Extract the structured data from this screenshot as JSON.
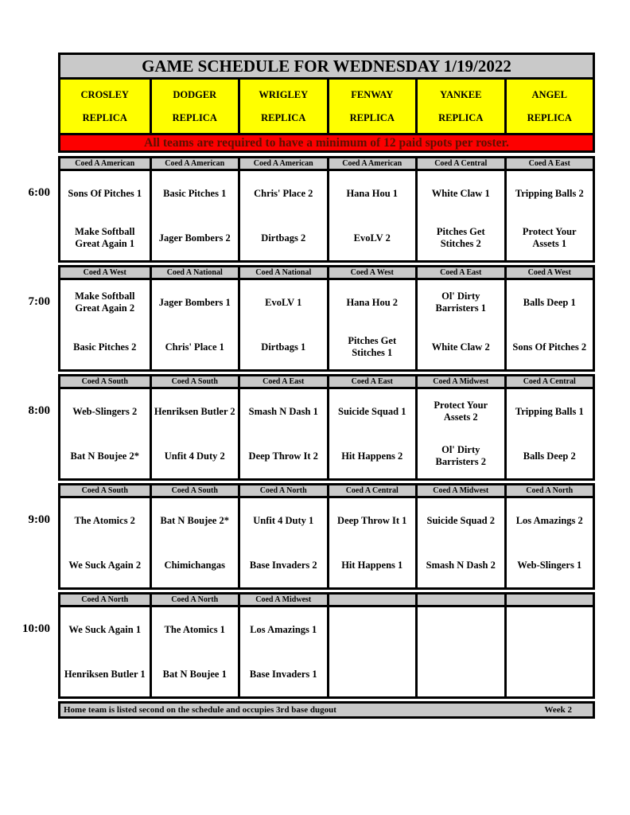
{
  "title": "GAME SCHEDULE FOR WEDNESDAY 1/19/2022",
  "notice": "All teams are required to have a minimum of 12 paid spots per roster.",
  "colors": {
    "silver": "#c9c9c9",
    "yellow": "#ffff00",
    "red": "#fd0000",
    "notice_text": "#5c0f00"
  },
  "stadiums": [
    {
      "name": "CROSLEY",
      "type": "REPLICA"
    },
    {
      "name": "DODGER",
      "type": "REPLICA"
    },
    {
      "name": "WRIGLEY",
      "type": "REPLICA"
    },
    {
      "name": "FENWAY",
      "type": "REPLICA"
    },
    {
      "name": "YANKEE",
      "type": "REPLICA"
    },
    {
      "name": "ANGEL",
      "type": "REPLICA"
    }
  ],
  "schedule": [
    {
      "time": "6:00",
      "games": [
        {
          "division": "Coed A American",
          "team1": "Sons Of Pitches 1",
          "team2": "Make Softball Great Again 1"
        },
        {
          "division": "Coed A American",
          "team1": "Basic Pitches 1",
          "team2": "Jager Bombers 2"
        },
        {
          "division": "Coed A American",
          "team1": "Chris' Place 2",
          "team2": "Dirtbags 2"
        },
        {
          "division": "Coed A American",
          "team1": "Hana Hou 1",
          "team2": "EvoLV 2"
        },
        {
          "division": "Coed A Central",
          "team1": "White Claw 1",
          "team2": "Pitches Get Stitches 2"
        },
        {
          "division": "Coed A East",
          "team1": "Tripping Balls 2",
          "team2": "Protect Your Assets 1"
        }
      ]
    },
    {
      "time": "7:00",
      "games": [
        {
          "division": "Coed A West",
          "team1": "Make Softball Great Again 2",
          "team2": "Basic Pitches 2"
        },
        {
          "division": "Coed A National",
          "team1": "Jager Bombers 1",
          "team2": "Chris' Place 1"
        },
        {
          "division": "Coed A National",
          "team1": "EvoLV 1",
          "team2": "Dirtbags 1"
        },
        {
          "division": "Coed A West",
          "team1": "Hana Hou 2",
          "team2": "Pitches Get Stitches 1"
        },
        {
          "division": "Coed A East",
          "team1": "Ol' Dirty Barristers 1",
          "team2": "White Claw 2"
        },
        {
          "division": "Coed A West",
          "team1": "Balls Deep 1",
          "team2": "Sons Of Pitches 2"
        }
      ]
    },
    {
      "time": "8:00",
      "games": [
        {
          "division": "Coed A South",
          "team1": "Web-Slingers 2",
          "team2": "Bat N Boujee 2*"
        },
        {
          "division": "Coed A South",
          "team1": "Henriksen Butler 2",
          "team2": "Unfit 4 Duty 2"
        },
        {
          "division": "Coed A East",
          "team1": "Smash N Dash 1",
          "team2": "Deep Throw It 2"
        },
        {
          "division": "Coed A East",
          "team1": "Suicide Squad 1",
          "team2": "Hit Happens 2"
        },
        {
          "division": "Coed A Midwest",
          "team1": "Protect Your Assets 2",
          "team2": "Ol' Dirty Barristers 2"
        },
        {
          "division": "Coed A Central",
          "team1": "Tripping Balls 1",
          "team2": "Balls Deep 2"
        }
      ]
    },
    {
      "time": "9:00",
      "games": [
        {
          "division": "Coed A South",
          "team1": "The Atomics 2",
          "team2": "We Suck Again 2"
        },
        {
          "division": "Coed A South",
          "team1": "Bat N Boujee 2*",
          "team2": "Chimichangas"
        },
        {
          "division": "Coed A North",
          "team1": "Unfit 4 Duty 1",
          "team2": "Base Invaders 2"
        },
        {
          "division": "Coed A Central",
          "team1": "Deep Throw It 1",
          "team2": "Hit Happens 1"
        },
        {
          "division": "Coed A Midwest",
          "team1": "Suicide Squad 2",
          "team2": "Smash N Dash 2"
        },
        {
          "division": "Coed A North",
          "team1": "Los Amazings 2",
          "team2": "Web-Slingers 1"
        }
      ]
    },
    {
      "time": "10:00",
      "games": [
        {
          "division": "Coed A North",
          "team1": "We Suck Again 1",
          "team2": "Henriksen Butler 1"
        },
        {
          "division": "Coed A North",
          "team1": "The Atomics 1",
          "team2": "Bat N Boujee 1"
        },
        {
          "division": "Coed A Midwest",
          "team1": "Los Amazings 1",
          "team2": "Base Invaders 1"
        },
        {
          "division": "",
          "team1": "",
          "team2": ""
        },
        {
          "division": "",
          "team1": "",
          "team2": ""
        },
        {
          "division": "",
          "team1": "",
          "team2": ""
        }
      ]
    }
  ],
  "footer": {
    "note": "Home team is listed second on the schedule and occupies 3rd base dugout",
    "week": "Week 2"
  }
}
